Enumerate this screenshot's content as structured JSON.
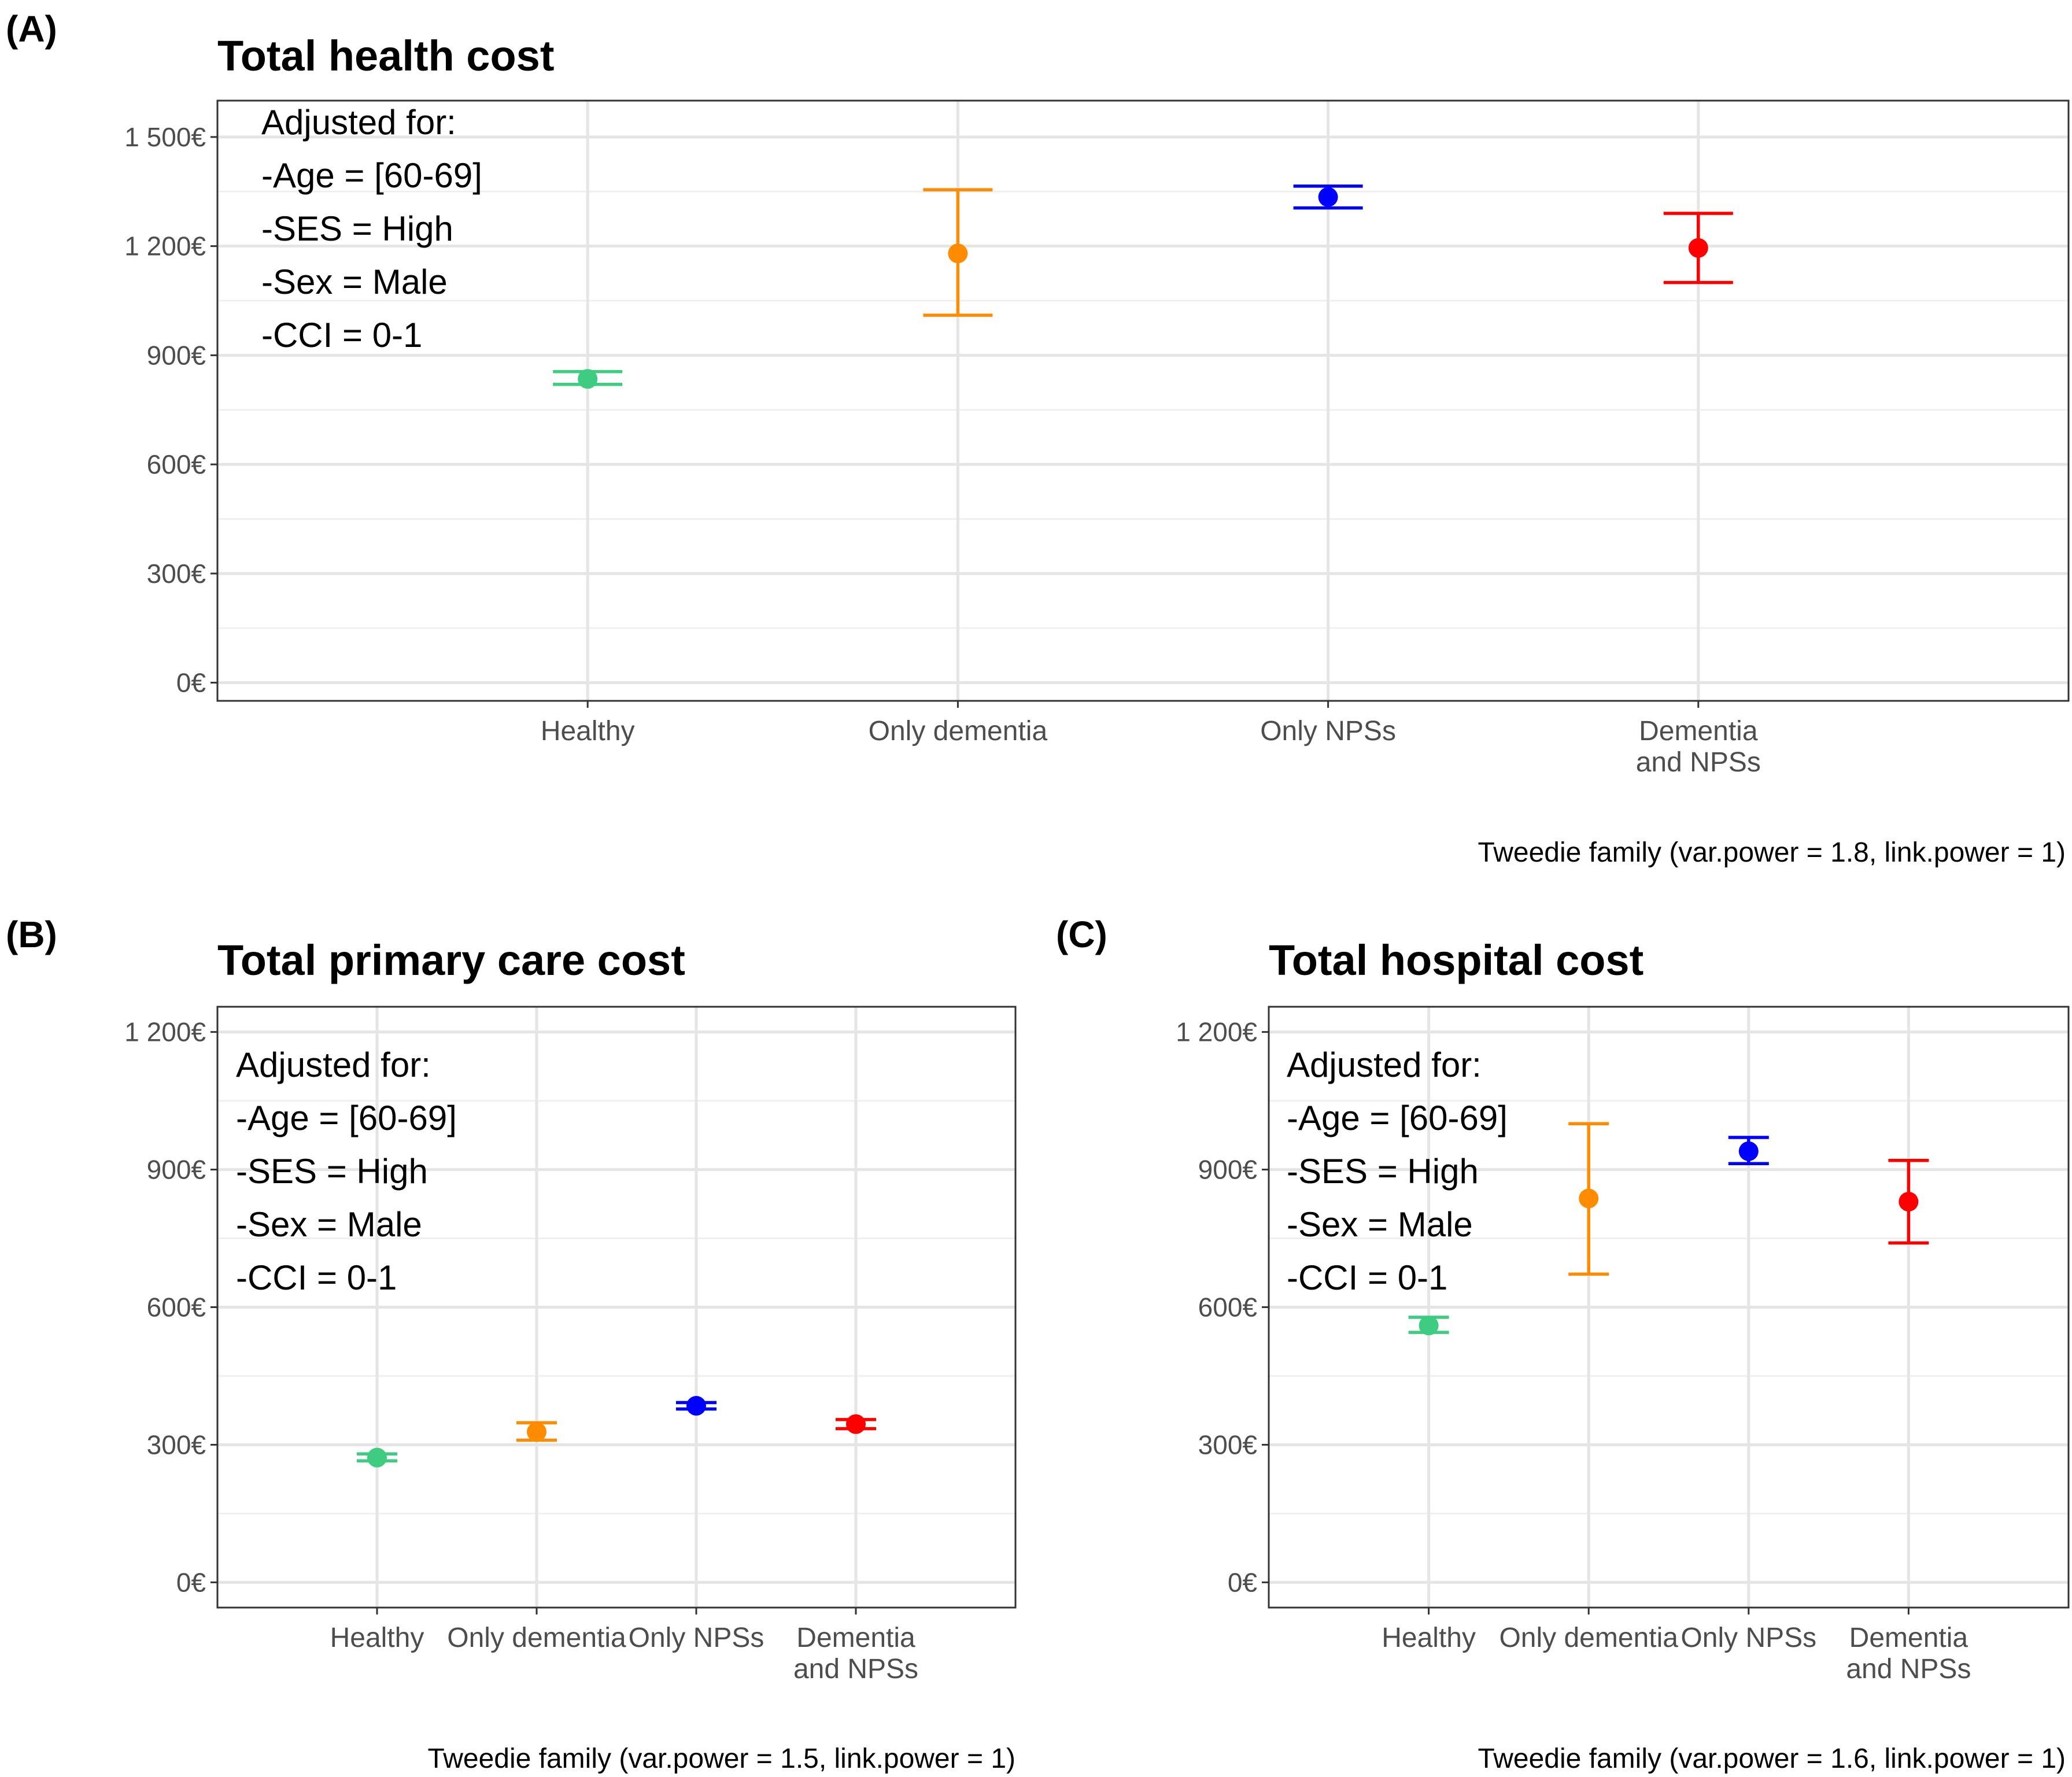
{
  "chart_data": [
    {
      "id": "A",
      "panel_tag": "(A)",
      "type": "scatter",
      "title": "Total health cost",
      "xlabel": "",
      "ylabel": "",
      "ylim": [
        -50,
        1600
      ],
      "yticks": [
        0,
        300,
        600,
        900,
        1200,
        1500
      ],
      "ytick_labels": [
        "0€",
        "300€",
        "600€",
        "900€",
        "1 200€",
        "1 500€"
      ],
      "categories": [
        [
          "Healthy"
        ],
        [
          "Only dementia"
        ],
        [
          "Only NPSs"
        ],
        [
          "Dementia",
          "and NPSs"
        ]
      ],
      "values": [
        835,
        1180,
        1335,
        1195
      ],
      "lower": [
        820,
        1010,
        1305,
        1100
      ],
      "upper": [
        855,
        1355,
        1365,
        1290
      ],
      "colors": [
        "#3dcc80",
        "#ff8c00",
        "#0000ff",
        "#ff0000"
      ],
      "annotation": [
        "Adjusted for:",
        "-Age = [60-69]",
        "-SES = High",
        "-Sex = Male",
        "-CCI = 0-1"
      ],
      "caption": "Tweedie family (var.power = 1.8, link.power = 1)",
      "grid": true,
      "legend": "none"
    },
    {
      "id": "B",
      "panel_tag": "(B)",
      "type": "scatter",
      "title": "Total primary care cost",
      "xlabel": "",
      "ylabel": "",
      "ylim": [
        -55,
        1255
      ],
      "yticks": [
        0,
        300,
        600,
        900,
        1200
      ],
      "ytick_labels": [
        "0€",
        "300€",
        "600€",
        "900€",
        "1 200€"
      ],
      "categories": [
        [
          "Healthy"
        ],
        [
          "Only dementia"
        ],
        [
          "Only NPSs"
        ],
        [
          "Dementia",
          "and NPSs"
        ]
      ],
      "values": [
        272,
        328,
        385,
        345
      ],
      "lower": [
        265,
        310,
        378,
        335
      ],
      "upper": [
        280,
        348,
        392,
        355
      ],
      "colors": [
        "#3dcc80",
        "#ff8c00",
        "#0000ff",
        "#ff0000"
      ],
      "annotation": [
        "Adjusted for:",
        "-Age = [60-69]",
        "-SES = High",
        "-Sex = Male",
        "-CCI = 0-1"
      ],
      "caption": "Tweedie family (var.power = 1.5, link.power = 1)",
      "grid": true,
      "legend": "none"
    },
    {
      "id": "C",
      "panel_tag": "(C)",
      "type": "scatter",
      "title": "Total hospital cost",
      "xlabel": "",
      "ylabel": "",
      "ylim": [
        -55,
        1255
      ],
      "yticks": [
        0,
        300,
        600,
        900,
        1200
      ],
      "ytick_labels": [
        "0€",
        "300€",
        "600€",
        "900€",
        "1 200€"
      ],
      "categories": [
        [
          "Healthy"
        ],
        [
          "Only dementia"
        ],
        [
          "Only NPSs"
        ],
        [
          "Dementia",
          "and NPSs"
        ]
      ],
      "values": [
        560,
        837,
        940,
        830
      ],
      "lower": [
        545,
        672,
        913,
        740
      ],
      "upper": [
        578,
        1000,
        970,
        920
      ],
      "colors": [
        "#3dcc80",
        "#ff8c00",
        "#0000ff",
        "#ff0000"
      ],
      "annotation": [
        "Adjusted for:",
        "-Age = [60-69]",
        "-SES = High",
        "-Sex = Male",
        "-CCI = 0-1"
      ],
      "caption": "Tweedie family (var.power = 1.6, link.power = 1)",
      "grid": true,
      "legend": "none"
    }
  ]
}
